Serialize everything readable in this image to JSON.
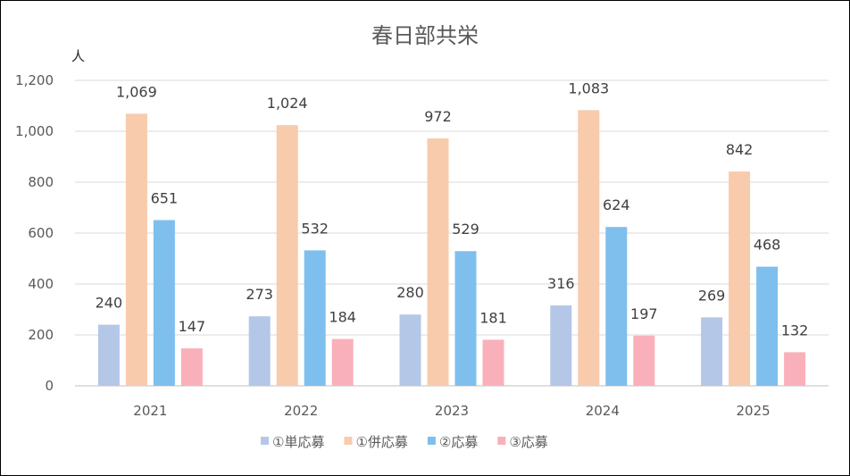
{
  "chart_data": {
    "type": "bar",
    "title": "春日部共栄",
    "ylabel": "人",
    "xlabel": "",
    "categories": [
      "2021",
      "2022",
      "2023",
      "2024",
      "2025"
    ],
    "ylim": [
      0,
      1200
    ],
    "yticks": [
      0,
      200,
      400,
      600,
      800,
      1000,
      1200
    ],
    "ytick_labels": [
      "0",
      "200",
      "400",
      "600",
      "800",
      "1,000",
      "1,200"
    ],
    "grid": true,
    "legend_position": "bottom",
    "series": [
      {
        "name": "①単応募",
        "color": "#b4c7e7",
        "values": [
          240,
          273,
          280,
          316,
          269
        ],
        "labels": [
          "240",
          "273",
          "280",
          "316",
          "269"
        ]
      },
      {
        "name": "①併応募",
        "color": "#f8cbad",
        "values": [
          1069,
          1024,
          972,
          1083,
          842
        ],
        "labels": [
          "1,069",
          "1,024",
          "972",
          "1,083",
          "842"
        ]
      },
      {
        "name": "②応募",
        "color": "#7fbfee",
        "values": [
          651,
          532,
          529,
          624,
          468
        ],
        "labels": [
          "651",
          "532",
          "529",
          "624",
          "468"
        ]
      },
      {
        "name": "③応募",
        "color": "#f9b0ba",
        "values": [
          147,
          184,
          181,
          197,
          132
        ],
        "labels": [
          "147",
          "184",
          "181",
          "197",
          "132"
        ]
      }
    ]
  }
}
